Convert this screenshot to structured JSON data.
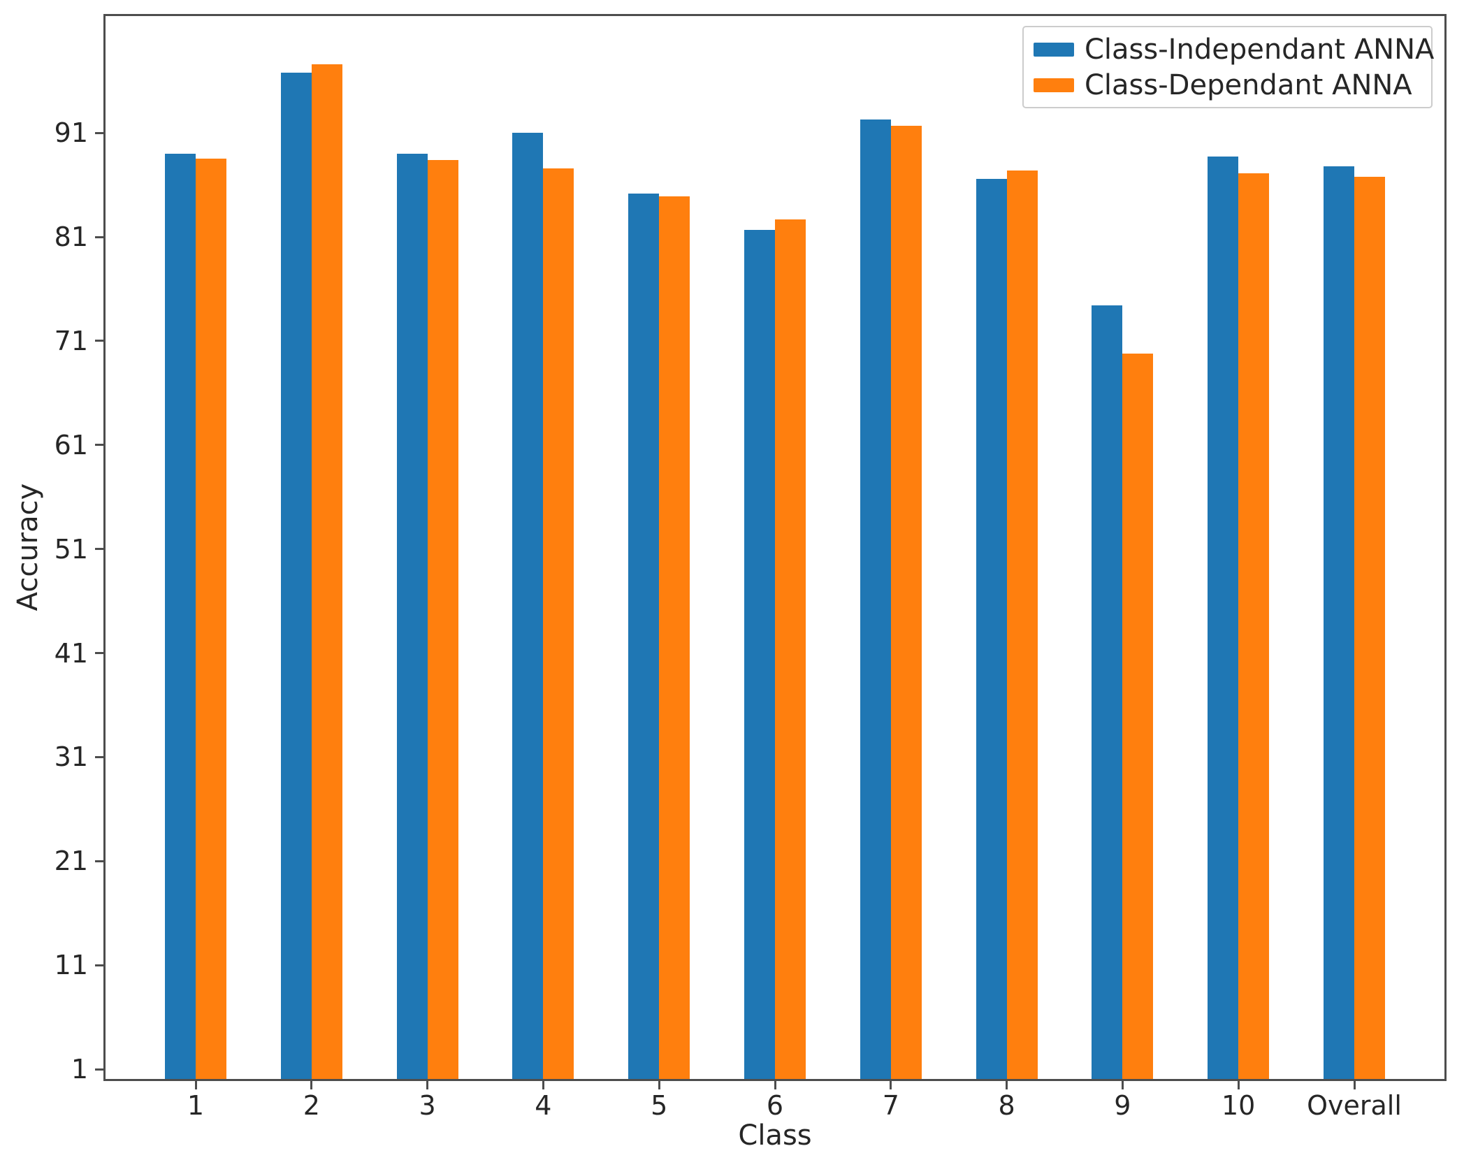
{
  "figure": {
    "background": "#ffffff"
  },
  "chart_data": {
    "type": "bar",
    "title": "",
    "xlabel": "Class",
    "ylabel": "Accuracy",
    "categories": [
      "1",
      "2",
      "3",
      "4",
      "5",
      "6",
      "7",
      "8",
      "9",
      "10",
      "Overall"
    ],
    "series": [
      {
        "name": "Class-Independant ANNA",
        "color": "#1f77b4",
        "values": [
          89.0,
          96.8,
          89.0,
          91.0,
          85.2,
          81.7,
          92.3,
          86.6,
          74.4,
          88.7,
          87.8
        ]
      },
      {
        "name": "Class-Dependant ANNA",
        "color": "#ff7f0e",
        "values": [
          88.5,
          97.6,
          88.4,
          87.6,
          84.9,
          82.7,
          91.7,
          87.4,
          69.8,
          87.1,
          86.8
        ]
      }
    ],
    "yticks": [
      1,
      11,
      21,
      31,
      41,
      51,
      61,
      71,
      81,
      91
    ],
    "ylim": [
      0,
      102.3
    ],
    "grid": false,
    "legend_position": "upper right"
  },
  "colors": {
    "axis": "#4d4d4d",
    "text": "#262626",
    "legend_border": "#cccccc"
  }
}
